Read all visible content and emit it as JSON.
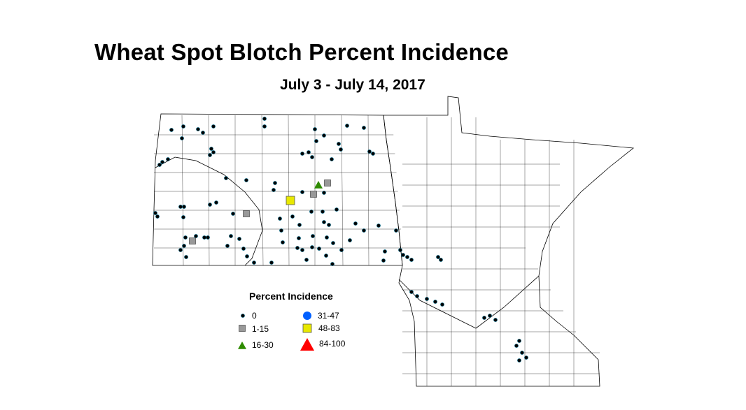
{
  "title": "Wheat Spot Blotch Percent Incidence",
  "subtitle": "July 3 - July 14, 2017",
  "legend": {
    "title": "Percent Incidence",
    "classes": [
      {
        "label": "0",
        "symbol": "small-dot",
        "color": "#000000"
      },
      {
        "label": "1-15",
        "symbol": "square",
        "color": "#999999"
      },
      {
        "label": "16-30",
        "symbol": "triangle",
        "color": "#2e8b00"
      },
      {
        "label": "31-47",
        "symbol": "circle",
        "color": "#0060ff"
      },
      {
        "label": "48-83",
        "symbol": "square",
        "color": "#e8e800"
      },
      {
        "label": "84-100",
        "symbol": "triangle",
        "color": "#ff0000"
      }
    ]
  }
}
